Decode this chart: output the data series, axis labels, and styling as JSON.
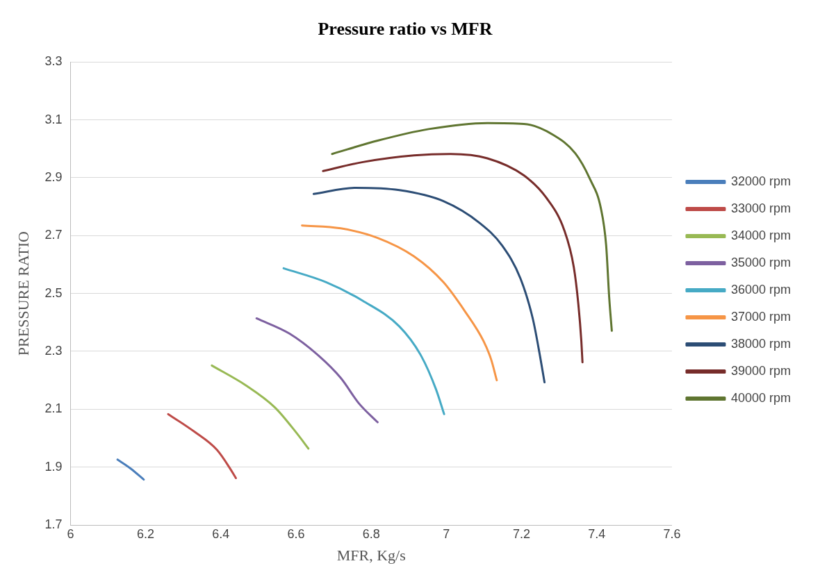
{
  "chart_data": {
    "type": "line",
    "title": "Pressure ratio vs MFR",
    "xlabel": "MFR, Kg/s",
    "ylabel": "PRESSURE RATIO",
    "xlim": [
      6,
      7.6
    ],
    "xticks": [
      6,
      6.2,
      6.4,
      6.6,
      6.8,
      7,
      7.2,
      7.4,
      7.6
    ],
    "ylim": [
      1.7,
      3.3
    ],
    "yticks": [
      1.7,
      1.9,
      2.1,
      2.3,
      2.5,
      2.7,
      2.9,
      3.1,
      3.3
    ],
    "grid": "y",
    "legend": "right",
    "marker": "none",
    "line_style": "solid",
    "series": [
      {
        "name": "32000 rpm",
        "color": "#4a7ebb",
        "x": [
          6.125,
          6.16,
          6.195
        ],
        "values": [
          1.926,
          1.895,
          1.857
        ]
      },
      {
        "name": "33000 rpm",
        "color": "#be4b48",
        "x": [
          6.26,
          6.33,
          6.39,
          6.427,
          6.44
        ],
        "values": [
          2.083,
          2.022,
          1.959,
          1.89,
          1.862
        ]
      },
      {
        "name": "34000 rpm",
        "color": "#98b954",
        "x": [
          6.376,
          6.466,
          6.544,
          6.602,
          6.633
        ],
        "values": [
          2.251,
          2.183,
          2.106,
          2.017,
          1.964
        ]
      },
      {
        "name": "35000 rpm",
        "color": "#7d60a0",
        "x": [
          6.495,
          6.583,
          6.661,
          6.719,
          6.768,
          6.817
        ],
        "values": [
          2.414,
          2.361,
          2.284,
          2.208,
          2.119,
          2.055
        ]
      },
      {
        "name": "36000 rpm",
        "color": "#46aac5",
        "x": [
          6.567,
          6.68,
          6.777,
          6.875,
          6.933,
          6.972,
          6.994
        ],
        "values": [
          2.587,
          2.539,
          2.475,
          2.386,
          2.284,
          2.17,
          2.083
        ]
      },
      {
        "name": "37000 rpm",
        "color": "#f69546",
        "x": [
          6.616,
          6.719,
          6.817,
          6.914,
          6.992,
          7.05,
          7.099,
          7.119,
          7.134
        ],
        "values": [
          2.735,
          2.725,
          2.692,
          2.628,
          2.539,
          2.437,
          2.335,
          2.272,
          2.2
        ]
      },
      {
        "name": "38000 rpm",
        "color": "#2c4d75",
        "x": [
          6.647,
          6.758,
          6.875,
          6.992,
          7.089,
          7.148,
          7.197,
          7.23,
          7.249,
          7.261
        ],
        "values": [
          2.844,
          2.865,
          2.857,
          2.819,
          2.743,
          2.666,
          2.552,
          2.412,
          2.284,
          2.193
        ]
      },
      {
        "name": "39000 rpm",
        "color": "#772c2a",
        "x": [
          6.672,
          6.778,
          6.914,
          7.011,
          7.109,
          7.206,
          7.265,
          7.314,
          7.339,
          7.351,
          7.359,
          7.362
        ],
        "values": [
          2.923,
          2.954,
          2.977,
          2.982,
          2.967,
          2.908,
          2.832,
          2.717,
          2.59,
          2.463,
          2.335,
          2.262
        ]
      },
      {
        "name": "40000 rpm",
        "color": "#5f7530",
        "x": [
          6.696,
          6.817,
          6.953,
          7.109,
          7.206,
          7.284,
          7.343,
          7.382,
          7.411,
          7.425,
          7.433,
          7.44
        ],
        "values": [
          2.982,
          3.028,
          3.068,
          3.089,
          3.086,
          3.048,
          2.984,
          2.895,
          2.794,
          2.666,
          2.488,
          2.371
        ]
      }
    ]
  }
}
